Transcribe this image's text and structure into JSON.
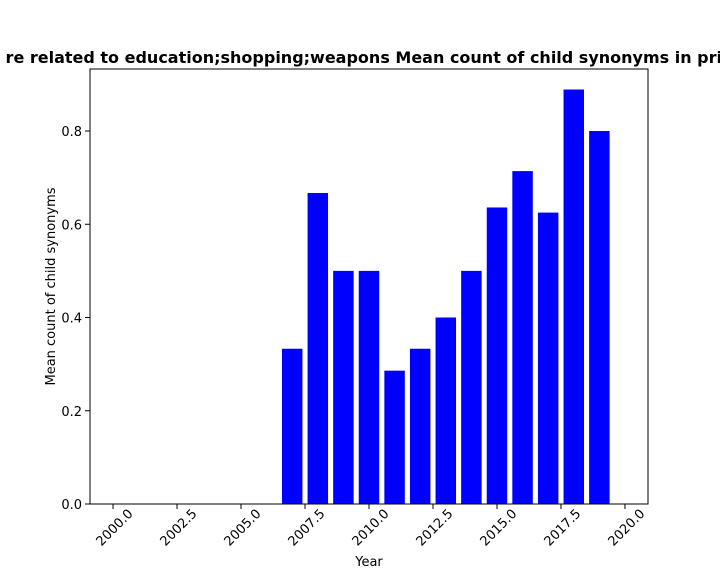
{
  "chart_data": {
    "type": "bar",
    "title": "re related to education;shopping;weapons Mean count of child synonyms in priv",
    "xlabel": "Year",
    "ylabel": "Mean count of child synonyms",
    "xlim": [
      1999.1,
      2020.9
    ],
    "ylim": [
      0,
      0.933
    ],
    "x_ticks": [
      2000.0,
      2002.5,
      2005.0,
      2007.5,
      2010.0,
      2012.5,
      2015.0,
      2017.5,
      2020.0
    ],
    "x_tick_labels": [
      "2000.0",
      "2002.5",
      "2005.0",
      "2007.5",
      "2010.0",
      "2012.5",
      "2015.0",
      "2017.5",
      "2020.0"
    ],
    "y_ticks": [
      0.0,
      0.2,
      0.4,
      0.6,
      0.8
    ],
    "y_tick_labels": [
      "0.0",
      "0.2",
      "0.4",
      "0.6",
      "0.8"
    ],
    "bar_color": "#0000ff",
    "grid": false,
    "series": [
      {
        "x": [
          2007,
          2008,
          2009,
          2010,
          2011,
          2012,
          2013,
          2014,
          2015,
          2016,
          2017,
          2018,
          2019
        ],
        "values": [
          0.333,
          0.667,
          0.5,
          0.5,
          0.286,
          0.333,
          0.4,
          0.5,
          0.636,
          0.714,
          0.625,
          0.889,
          0.8
        ]
      }
    ]
  }
}
